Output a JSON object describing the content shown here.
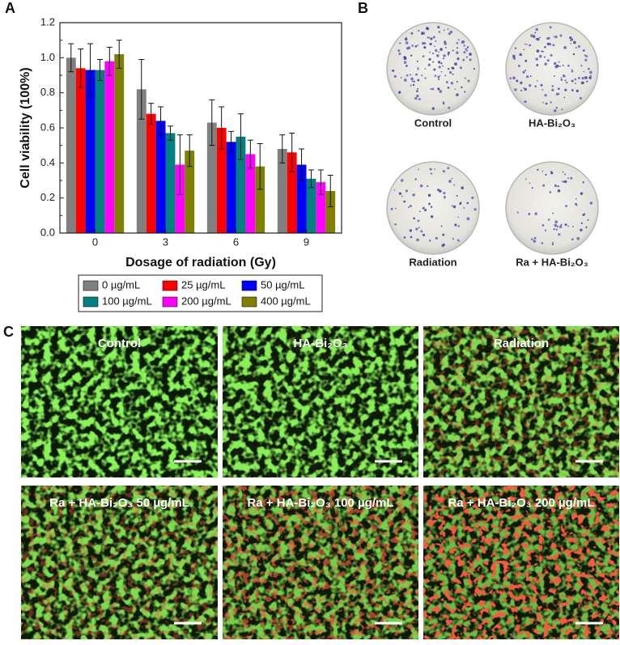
{
  "panel_a": {
    "label": "A"
  },
  "chart_data": {
    "type": "bar",
    "categories": [
      "0",
      "3",
      "6",
      "9"
    ],
    "x_label": "Dosage of radiation (Gy)",
    "y_label": "Cell viability (100%)",
    "ylim": [
      0,
      1.2
    ],
    "yticks": [
      {
        "value": 0,
        "label": "0.0"
      },
      0.2,
      0.4,
      0.6,
      0.8,
      {
        "value": 1,
        "label": "1.0"
      },
      1.2
    ],
    "series": [
      {
        "name": "0 µg/mL",
        "color": "#808080",
        "values": [
          1.0,
          0.82,
          0.63,
          0.48
        ],
        "errors": [
          0.08,
          0.17,
          0.13,
          0.08
        ]
      },
      {
        "name": "25 µg/mL",
        "color": "#ff0000",
        "values": [
          0.94,
          0.68,
          0.6,
          0.46
        ],
        "errors": [
          0.11,
          0.06,
          0.12,
          0.11
        ]
      },
      {
        "name": "50 µg/mL",
        "color": "#0000ff",
        "values": [
          0.93,
          0.64,
          0.52,
          0.39
        ],
        "errors": [
          0.15,
          0.08,
          0.06,
          0.09
        ]
      },
      {
        "name": "100 µg/mL",
        "color": "#008080",
        "values": [
          0.93,
          0.57,
          0.55,
          0.31
        ],
        "errors": [
          0.06,
          0.04,
          0.13,
          0.05
        ]
      },
      {
        "name": "200 µg/mL",
        "color": "#ff00ff",
        "values": [
          0.98,
          0.39,
          0.45,
          0.29
        ],
        "errors": [
          0.08,
          0.17,
          0.08,
          0.07
        ]
      },
      {
        "name": "400 µg/mL",
        "color": "#808000",
        "values": [
          1.02,
          0.47,
          0.38,
          0.24
        ],
        "errors": [
          0.08,
          0.09,
          0.13,
          0.09
        ]
      }
    ]
  },
  "panel_b": {
    "label": "B",
    "plates": [
      "Control",
      "HA-Bi₂O₃",
      "Radiation",
      "Ra + HA-Bi₂O₃"
    ]
  },
  "panel_c": {
    "label": "C",
    "images": [
      "Control",
      "HA-Bi₂O₃",
      "Radiation",
      "Ra + HA-Bi₂O₃ 50 µg/mL",
      "Ra + HA-Bi₂O₃ 100 µg/mL",
      "Ra + HA-Bi₂O₃ 200 µg/mL"
    ]
  }
}
